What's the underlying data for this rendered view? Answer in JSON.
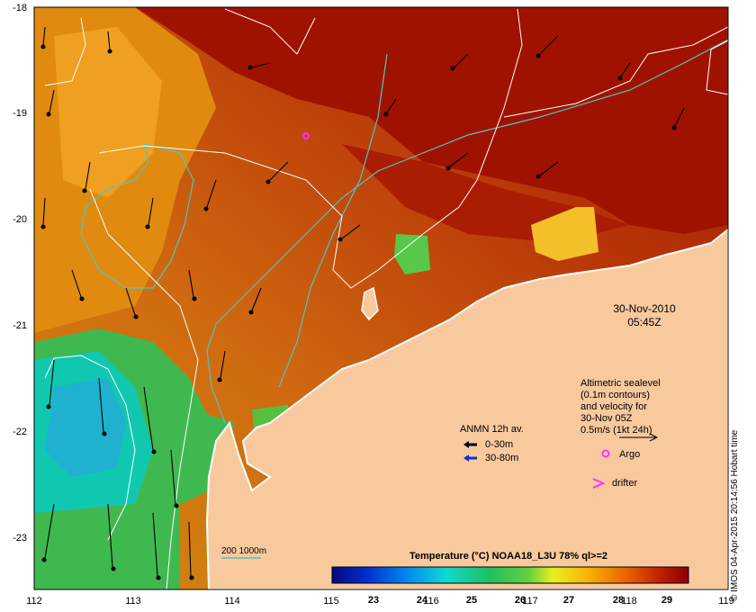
{
  "map": {
    "lon_ticks": [
      "112",
      "113",
      "114",
      "115",
      "116",
      "117",
      "118",
      "119"
    ],
    "lat_ticks": [
      "-18",
      "-19",
      "-20",
      "-21",
      "-22",
      "-23"
    ],
    "date": "30-Nov-2010",
    "time": "05:45Z",
    "credit": "© IMOS 04-Apr-2015 20:14:56 Hobart time",
    "depth_contours": "200  1000m"
  },
  "sealevel_note": {
    "line1": "Altimetric sealevel",
    "line2": "(0.1m contours)",
    "line3": "and velocity for",
    "line4": "30-Nov 05Z",
    "scale": "0.5m/s (1kt 24h)"
  },
  "legend": {
    "title": "ANMN 12h av.",
    "shallow": "0-30m",
    "deep": "30-80m",
    "argo": "Argo",
    "drifter": "drifter"
  },
  "colorbar": {
    "title": "Temperature (°C) NOAA18_L3U 78% ql>=2",
    "ticks": [
      "23",
      "24",
      "25",
      "26",
      "27",
      "28",
      "29"
    ],
    "range": [
      22.1,
      29.4
    ]
  },
  "colors": {
    "land": "#f9c99e",
    "coast": "#ffffff",
    "shelf_contour": "#4fc4c4",
    "sealevel_contour": "#ffffff",
    "shallow_arrow": "#000000",
    "deep_arrow": "#1030c0",
    "argo": "#ff30ff",
    "drifter": "#ff30ff"
  }
}
